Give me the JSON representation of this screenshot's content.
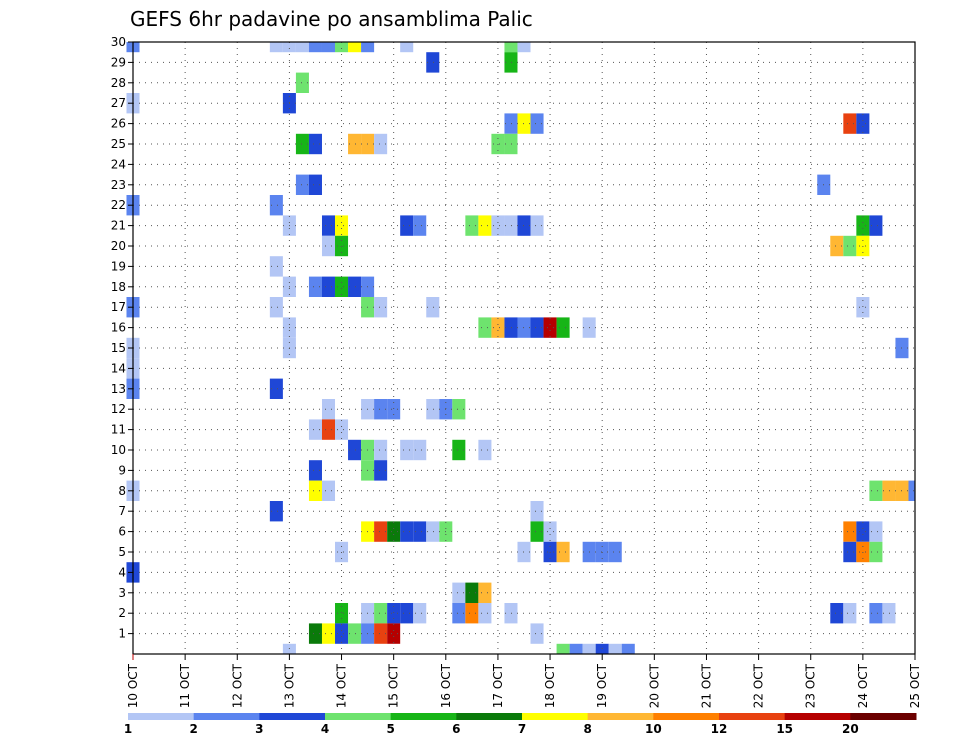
{
  "chart_data": {
    "type": "heatmap",
    "title": "GEFS 6hr padavine po ansamblima Palic",
    "x_axis": {
      "unit": "hours since 10 OCT 00z",
      "range_hours": [
        0,
        360
      ],
      "tick_labels": [
        "10 OCT",
        "11 OCT",
        "12 OCT",
        "13 OCT",
        "14 OCT",
        "15 OCT",
        "16 OCT",
        "17 OCT",
        "18 OCT",
        "19 OCT",
        "20 OCT",
        "21 OCT",
        "22 OCT",
        "23 OCT",
        "24 OCT",
        "25 OCT"
      ],
      "step_hours": 6
    },
    "y_axis": {
      "label": "",
      "members_range": [
        0,
        30
      ],
      "tick_labels": [
        "1",
        "2",
        "3",
        "4",
        "5",
        "6",
        "7",
        "8",
        "9",
        "10",
        "11",
        "12",
        "13",
        "14",
        "15",
        "16",
        "17",
        "18",
        "19",
        "20",
        "21",
        "22",
        "23",
        "24",
        "25",
        "26",
        "27",
        "28",
        "29",
        "30"
      ]
    },
    "grid": true,
    "legend": {
      "placement": "bottom",
      "bins": [
        {
          "label": "1",
          "color": "#b3c6f5"
        },
        {
          "label": "2",
          "color": "#5b84ef"
        },
        {
          "label": "3",
          "color": "#1f47d6"
        },
        {
          "label": "4",
          "color": "#6ee36e"
        },
        {
          "label": "5",
          "color": "#17b517"
        },
        {
          "label": "6",
          "color": "#0a7a0a"
        },
        {
          "label": "7",
          "color": "#ffff00"
        },
        {
          "label": "8",
          "color": "#ffb733"
        },
        {
          "label": "10",
          "color": "#ff8000"
        },
        {
          "label": "12",
          "color": "#e84110"
        },
        {
          "label": "15",
          "color": "#b50000"
        },
        {
          "label": "20",
          "color": "#6b0000"
        }
      ]
    },
    "cells": [
      [
        30,
        0,
        2
      ],
      [
        30,
        66,
        1
      ],
      [
        30,
        72,
        1
      ],
      [
        30,
        78,
        1
      ],
      [
        30,
        84,
        2
      ],
      [
        30,
        90,
        2
      ],
      [
        30,
        96,
        4
      ],
      [
        30,
        102,
        7
      ],
      [
        30,
        108,
        2
      ],
      [
        30,
        126,
        1
      ],
      [
        30,
        174,
        4
      ],
      [
        30,
        180,
        1
      ],
      [
        29,
        138,
        3
      ],
      [
        29,
        174,
        5
      ],
      [
        28,
        78,
        4
      ],
      [
        27,
        0,
        1
      ],
      [
        27,
        72,
        3
      ],
      [
        26,
        174,
        2
      ],
      [
        26,
        180,
        7
      ],
      [
        26,
        186,
        2
      ],
      [
        26,
        330,
        12
      ],
      [
        26,
        336,
        3
      ],
      [
        25,
        78,
        5
      ],
      [
        25,
        84,
        3
      ],
      [
        25,
        102,
        8
      ],
      [
        25,
        108,
        8
      ],
      [
        25,
        114,
        1
      ],
      [
        25,
        168,
        4
      ],
      [
        25,
        174,
        4
      ],
      [
        23,
        78,
        2
      ],
      [
        23,
        84,
        3
      ],
      [
        23,
        318,
        2
      ],
      [
        22,
        0,
        2
      ],
      [
        22,
        66,
        2
      ],
      [
        21,
        72,
        1
      ],
      [
        21,
        90,
        3
      ],
      [
        21,
        96,
        7
      ],
      [
        21,
        126,
        3
      ],
      [
        21,
        132,
        2
      ],
      [
        21,
        156,
        4
      ],
      [
        21,
        162,
        7
      ],
      [
        21,
        168,
        1
      ],
      [
        21,
        174,
        1
      ],
      [
        21,
        180,
        3
      ],
      [
        21,
        186,
        1
      ],
      [
        21,
        336,
        5
      ],
      [
        21,
        342,
        3
      ],
      [
        20,
        90,
        1
      ],
      [
        20,
        96,
        5
      ],
      [
        20,
        324,
        8
      ],
      [
        20,
        330,
        4
      ],
      [
        20,
        336,
        7
      ],
      [
        19,
        66,
        1
      ],
      [
        18,
        72,
        1
      ],
      [
        18,
        84,
        2
      ],
      [
        18,
        90,
        3
      ],
      [
        18,
        96,
        5
      ],
      [
        18,
        102,
        3
      ],
      [
        18,
        108,
        2
      ],
      [
        17,
        0,
        2
      ],
      [
        17,
        66,
        1
      ],
      [
        17,
        108,
        4
      ],
      [
        17,
        114,
        1
      ],
      [
        17,
        138,
        1
      ],
      [
        17,
        336,
        1
      ],
      [
        16,
        72,
        1
      ],
      [
        16,
        162,
        4
      ],
      [
        16,
        168,
        8
      ],
      [
        16,
        174,
        3
      ],
      [
        16,
        180,
        2
      ],
      [
        16,
        186,
        3
      ],
      [
        16,
        192,
        15
      ],
      [
        16,
        198,
        5
      ],
      [
        16,
        210,
        1
      ],
      [
        15,
        0,
        1
      ],
      [
        15,
        72,
        1
      ],
      [
        15,
        354,
        2
      ],
      [
        14,
        0,
        1
      ],
      [
        13,
        0,
        2
      ],
      [
        13,
        66,
        3
      ],
      [
        12,
        90,
        1
      ],
      [
        12,
        108,
        1
      ],
      [
        12,
        114,
        2
      ],
      [
        12,
        120,
        2
      ],
      [
        12,
        138,
        1
      ],
      [
        12,
        144,
        2
      ],
      [
        12,
        150,
        4
      ],
      [
        11,
        84,
        1
      ],
      [
        11,
        90,
        12
      ],
      [
        11,
        96,
        1
      ],
      [
        10,
        102,
        3
      ],
      [
        10,
        108,
        4
      ],
      [
        10,
        114,
        1
      ],
      [
        10,
        126,
        1
      ],
      [
        10,
        132,
        1
      ],
      [
        10,
        150,
        5
      ],
      [
        10,
        162,
        1
      ],
      [
        9,
        84,
        3
      ],
      [
        9,
        108,
        4
      ],
      [
        9,
        114,
        3
      ],
      [
        8,
        0,
        1
      ],
      [
        8,
        84,
        7
      ],
      [
        8,
        90,
        1
      ],
      [
        8,
        342,
        4
      ],
      [
        8,
        348,
        8
      ],
      [
        8,
        354,
        8
      ],
      [
        8,
        360,
        2
      ],
      [
        7,
        66,
        3
      ],
      [
        7,
        186,
        1
      ],
      [
        6,
        108,
        7
      ],
      [
        6,
        114,
        12
      ],
      [
        6,
        120,
        6
      ],
      [
        6,
        126,
        3
      ],
      [
        6,
        132,
        3
      ],
      [
        6,
        138,
        1
      ],
      [
        6,
        144,
        4
      ],
      [
        6,
        186,
        5
      ],
      [
        6,
        192,
        1
      ],
      [
        6,
        330,
        10
      ],
      [
        6,
        336,
        3
      ],
      [
        6,
        342,
        1
      ],
      [
        5,
        96,
        1
      ],
      [
        5,
        180,
        1
      ],
      [
        5,
        192,
        3
      ],
      [
        5,
        198,
        8
      ],
      [
        5,
        210,
        2
      ],
      [
        5,
        216,
        2
      ],
      [
        5,
        222,
        2
      ],
      [
        5,
        330,
        3
      ],
      [
        5,
        336,
        10
      ],
      [
        5,
        342,
        4
      ],
      [
        4,
        0,
        3
      ],
      [
        3,
        150,
        1
      ],
      [
        3,
        156,
        6
      ],
      [
        3,
        162,
        8
      ],
      [
        2,
        96,
        5
      ],
      [
        2,
        108,
        1
      ],
      [
        2,
        114,
        4
      ],
      [
        2,
        120,
        3
      ],
      [
        2,
        126,
        3
      ],
      [
        2,
        132,
        1
      ],
      [
        2,
        150,
        2
      ],
      [
        2,
        156,
        10
      ],
      [
        2,
        162,
        1
      ],
      [
        2,
        174,
        1
      ],
      [
        2,
        324,
        3
      ],
      [
        2,
        330,
        1
      ],
      [
        2,
        342,
        2
      ],
      [
        2,
        348,
        1
      ],
      [
        1,
        84,
        6
      ],
      [
        1,
        90,
        7
      ],
      [
        1,
        96,
        3
      ],
      [
        1,
        102,
        4
      ],
      [
        1,
        108,
        2
      ],
      [
        1,
        114,
        12
      ],
      [
        1,
        120,
        15
      ],
      [
        1,
        186,
        1
      ],
      [
        0,
        72,
        1
      ],
      [
        0,
        198,
        4
      ],
      [
        0,
        204,
        2
      ],
      [
        0,
        210,
        1
      ],
      [
        0,
        216,
        3
      ],
      [
        0,
        222,
        1
      ],
      [
        0,
        228,
        2
      ]
    ]
  }
}
